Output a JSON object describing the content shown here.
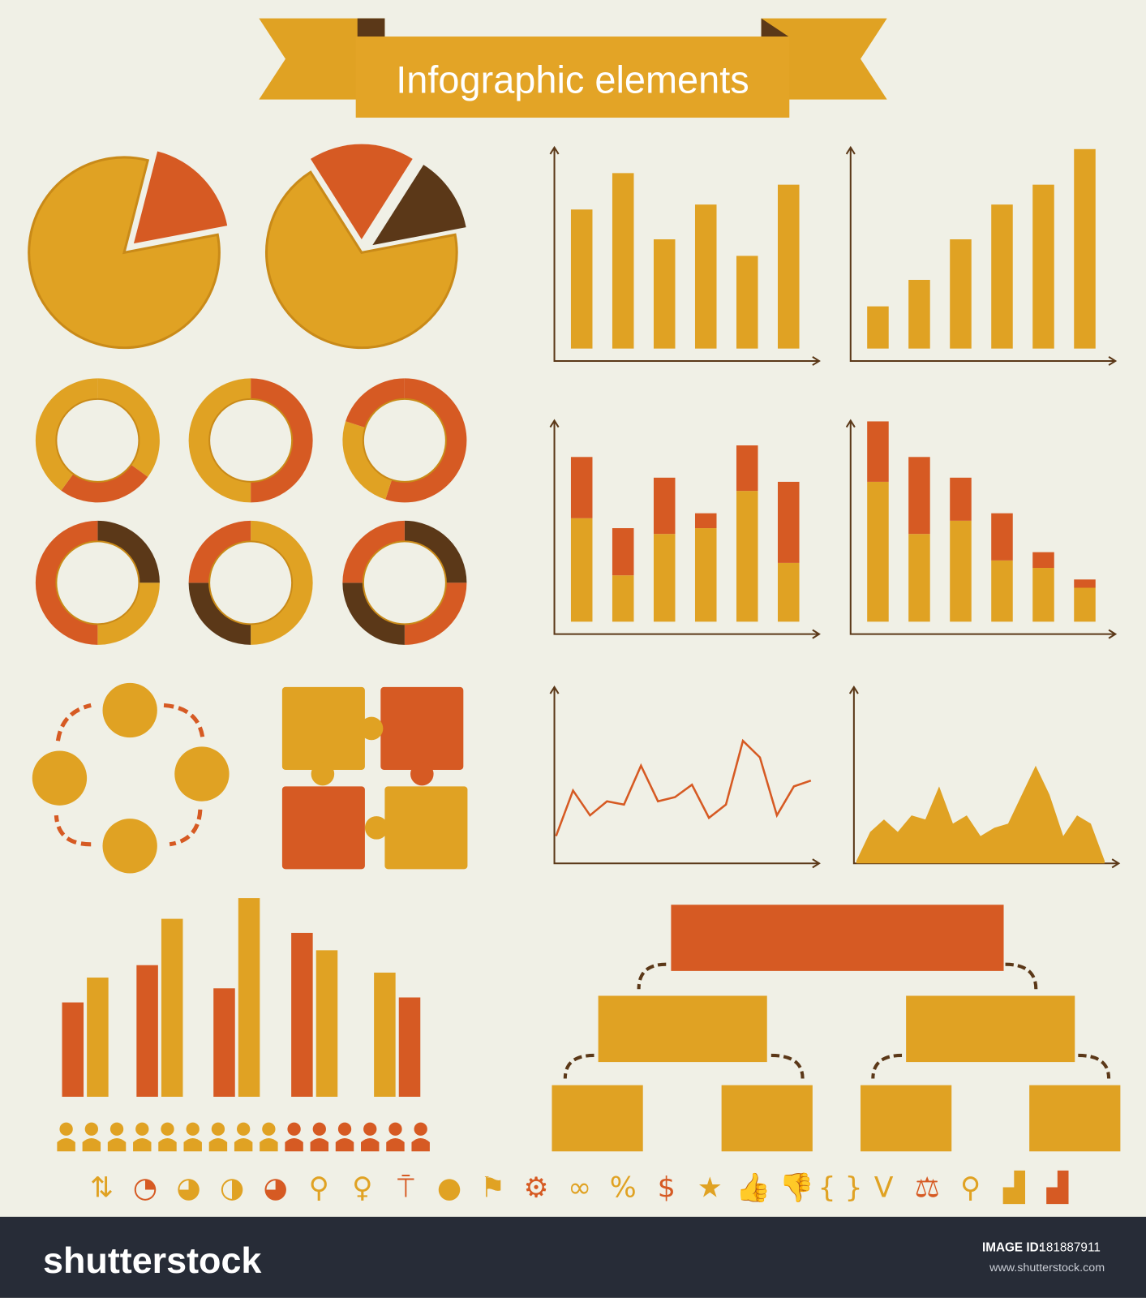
{
  "title": "Infographic elements",
  "colors": {
    "background": "#f0f0e6",
    "yellow": "#e0a223",
    "orange": "#d65a23",
    "brown": "#5b3818",
    "axis": "#5b3818",
    "footer": "#272c37"
  },
  "chart_data": [
    {
      "type": "bar",
      "name": "bar-chart-1",
      "values": [
        168,
        212,
        132,
        174,
        112,
        198
      ]
    },
    {
      "type": "bar",
      "name": "bar-chart-2",
      "values": [
        51,
        83,
        132,
        174,
        198,
        241
      ]
    },
    {
      "type": "bar",
      "name": "stacked-bar-chart-1",
      "series": [
        {
          "values": [
            125,
            56,
            106,
            113,
            158,
            71
          ]
        },
        {
          "values": [
            74,
            57,
            68,
            18,
            55,
            98
          ]
        }
      ]
    },
    {
      "type": "bar",
      "name": "stacked-bar-chart-2",
      "series": [
        {
          "values": [
            169,
            106,
            122,
            74,
            65,
            41
          ]
        },
        {
          "values": [
            73,
            93,
            52,
            57,
            19,
            10
          ]
        }
      ]
    },
    {
      "type": "line",
      "name": "line-chart",
      "values": [
        33,
        88,
        58,
        75,
        71,
        118,
        75,
        80,
        95,
        55,
        71,
        148,
        128,
        58,
        93,
        100
      ]
    },
    {
      "type": "area",
      "name": "area-chart",
      "values": [
        3,
        38,
        53,
        38,
        58,
        53,
        93,
        48,
        58,
        33,
        43,
        48,
        83,
        118,
        83,
        33,
        58,
        48,
        3
      ]
    },
    {
      "type": "bar",
      "name": "grouped-bar-chart",
      "series": [
        {
          "values": [
            114,
            159,
            131,
            198,
            120
          ]
        },
        {
          "values": [
            144,
            215,
            240,
            177,
            150
          ]
        }
      ]
    }
  ],
  "pies": [
    {
      "fractions": [
        0.82,
        0.18
      ]
    },
    {
      "fractions": [
        0.69,
        0.18,
        0.13
      ]
    }
  ],
  "donuts": [
    {
      "segments": [
        [
          "yellow",
          0.35
        ],
        [
          "orange",
          0.25
        ],
        [
          "yellow",
          0.4
        ]
      ]
    },
    {
      "segments": [
        [
          "orange",
          0.5
        ],
        [
          "yellow",
          0.5
        ]
      ]
    },
    {
      "segments": [
        [
          "orange",
          0.55
        ],
        [
          "yellow",
          0.25
        ],
        [
          "orange",
          0.2
        ]
      ]
    },
    {
      "segments": [
        [
          "brown",
          0.25
        ],
        [
          "yellow",
          0.25
        ],
        [
          "orange",
          0.5
        ]
      ]
    },
    {
      "segments": [
        [
          "yellow",
          0.5
        ],
        [
          "brown",
          0.25
        ],
        [
          "orange",
          0.25
        ]
      ]
    },
    {
      "segments": [
        [
          "brown",
          0.25
        ],
        [
          "orange",
          0.25
        ],
        [
          "brown",
          0.25
        ],
        [
          "orange",
          0.25
        ]
      ]
    }
  ],
  "people": {
    "total": 15,
    "highlighted": 9.5
  },
  "icons": [
    "arrows-up-down",
    "pie-icon",
    "pie-icon",
    "pie-icon",
    "pie-icon",
    "map-pin",
    "map-pin",
    "sign-pin",
    "speech-bubble",
    "flag",
    "gear",
    "circles",
    "%",
    "$",
    "★",
    "thumbs-up",
    "thumbs-down",
    "{}",
    "V",
    "scales",
    "magnifier",
    "growth-chart",
    "growth-chart"
  ],
  "icon_glyphs": [
    "⇅",
    "◔",
    "◕",
    "◑",
    "◕",
    "⚲",
    "♀",
    "⍑",
    "●",
    "⚑",
    "⚙",
    "∞",
    "%",
    "$",
    "★",
    "👍",
    "👎",
    "{ }",
    "V",
    "⚖",
    "⚲",
    "▟",
    "▟"
  ],
  "footer": {
    "logo": "shutterstock",
    "image_id_label": "IMAGE ID:",
    "image_id": "181887911",
    "url": "www.shutterstock.com"
  }
}
